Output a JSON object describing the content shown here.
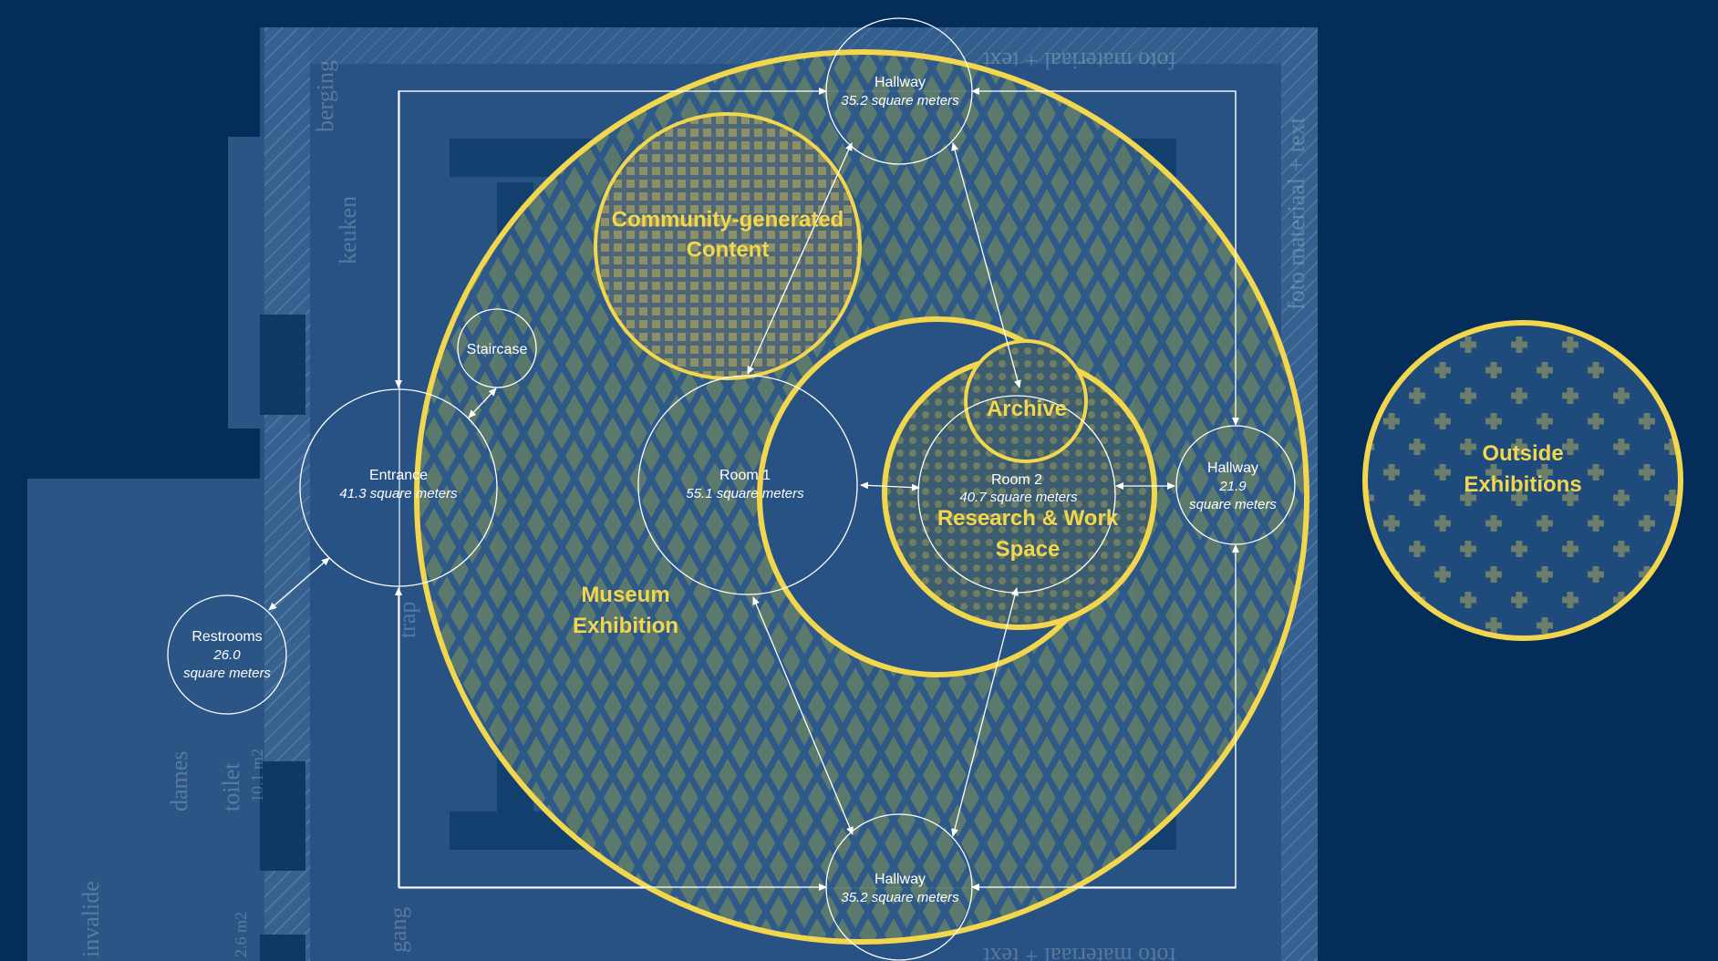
{
  "colors": {
    "background": "#052d5a",
    "floorplan": "#285283",
    "accent": "#f2d74e",
    "line": "#ffffff"
  },
  "zones": {
    "museum": "Museum\nExhibition",
    "community": "Community-generated\nContent",
    "research": "Research & Work\nSpace",
    "archive": "Archive",
    "outside": "Outside\nExhibitions"
  },
  "rooms": {
    "hallway_top": {
      "name": "Hallway",
      "area": "35.2 square meters"
    },
    "hallway_bottom": {
      "name": "Hallway",
      "area": "35.2 square meters"
    },
    "hallway_right": {
      "name": "Hallway",
      "area_value": "21.9",
      "area_unit": "square meters"
    },
    "staircase": {
      "name": "Staircase"
    },
    "entrance": {
      "name": "Entrance",
      "area": "41.3 square meters"
    },
    "restrooms": {
      "name": "Restrooms",
      "area_value": "26.0",
      "area_unit": "square meters"
    },
    "room1": {
      "name": "Room 1",
      "area": "55.1 square meters"
    },
    "room2": {
      "name": "Room 2",
      "area": "40.7 square meters"
    }
  },
  "floorplan_labels": {
    "top_text": "foto materiaal + text",
    "bottom_text": "foto materiaal + text",
    "side_text": "foto materiaal + text",
    "keuken": "keuken",
    "berging": "berging",
    "dames": "dames",
    "toilet": "toilet",
    "invalide": "invalide",
    "gang": "gang",
    "trap": "trap",
    "area_label": "10.1 m2",
    "area_label2": "2.6 m2"
  }
}
